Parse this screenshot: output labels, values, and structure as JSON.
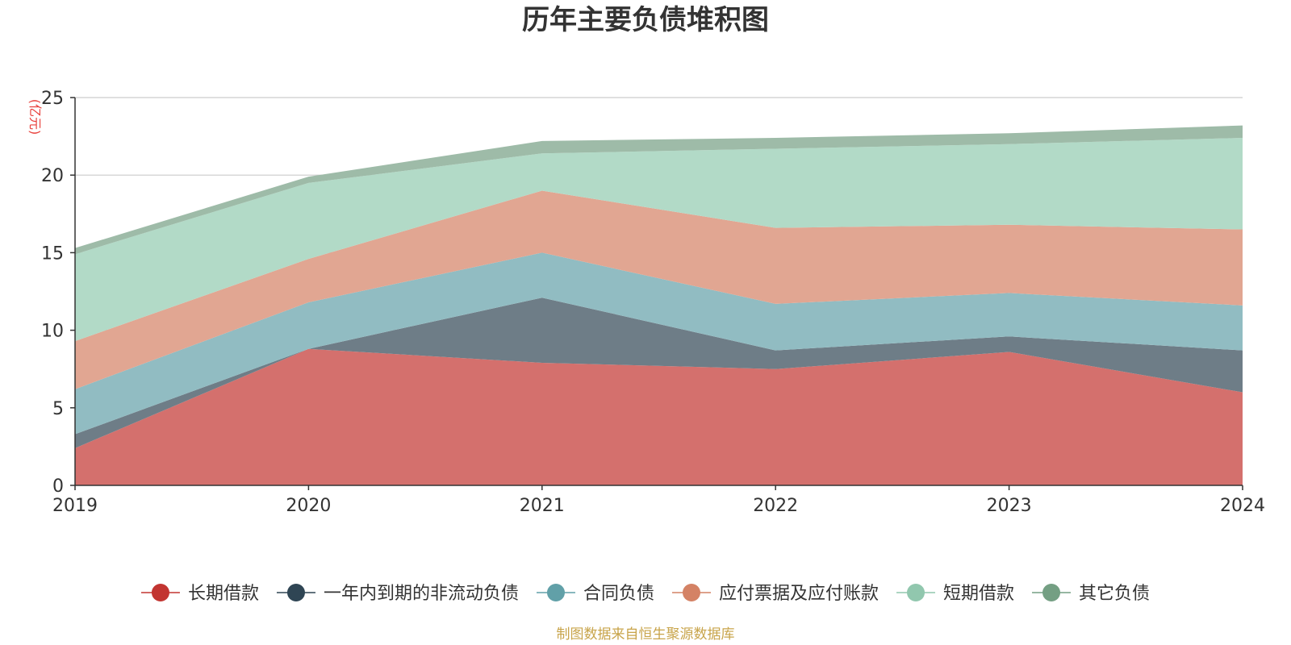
{
  "chart_data": {
    "type": "area",
    "stacked": true,
    "title": "历年主要负债堆积图",
    "unit_label": "亿元",
    "x": [
      "2019",
      "2020",
      "2021",
      "2022",
      "2023",
      "2024"
    ],
    "ylim": [
      0,
      25
    ],
    "yticks": [
      "0",
      "5",
      "10",
      "15",
      "20",
      "25"
    ],
    "grid": true,
    "legend_position": "bottom",
    "series": [
      {
        "name": "长期借款",
        "color": "#c23531",
        "fill": "#d4706d",
        "values": [
          2.4,
          8.8,
          7.9,
          7.5,
          8.6,
          6.0
        ]
      },
      {
        "name": "一年内到期的非流动负债",
        "color": "#2f4554",
        "fill": "#6e7d87",
        "values": [
          0.9,
          0.0,
          4.2,
          1.2,
          1.0,
          2.7
        ]
      },
      {
        "name": "合同负债",
        "color": "#61a0a8",
        "fill": "#91bcc2",
        "values": [
          2.9,
          3.0,
          2.9,
          3.0,
          2.8,
          2.9
        ]
      },
      {
        "name": "应付票据及应付账款",
        "color": "#d48265",
        "fill": "#e1a692",
        "values": [
          3.1,
          2.8,
          4.0,
          4.9,
          4.4,
          4.9
        ]
      },
      {
        "name": "短期借款",
        "color": "#91c7ae",
        "fill": "#b2dac7",
        "values": [
          5.6,
          4.9,
          2.4,
          5.1,
          5.2,
          5.9
        ]
      },
      {
        "name": "其它负债",
        "color": "#749f83",
        "fill": "#9ebba8",
        "values": [
          0.4,
          0.4,
          0.8,
          0.7,
          0.7,
          0.8
        ]
      }
    ]
  },
  "footer": {
    "source": "制图数据来自恒生聚源数据库",
    "source_color": "#c8a44a"
  },
  "unit_color": "#e8413c"
}
